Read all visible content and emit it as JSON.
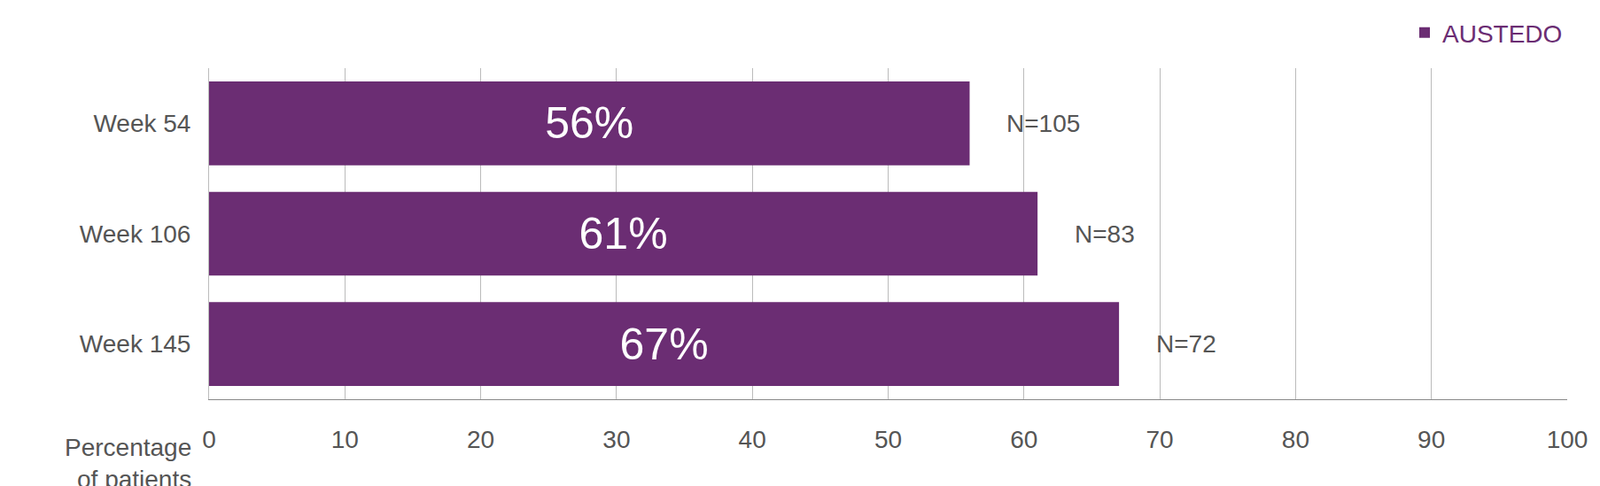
{
  "chart_data": {
    "type": "bar",
    "orientation": "horizontal",
    "categories": [
      "Week 54",
      "Week 106",
      "Week 145"
    ],
    "series": [
      {
        "name": "AUSTEDO",
        "color": "#6b2d73",
        "values": [
          56,
          61,
          67
        ],
        "value_labels": [
          "56%",
          "61%",
          "67%"
        ],
        "n_labels": [
          "N=105",
          "N=83",
          "N=72"
        ]
      }
    ],
    "x_label": "Percentage of patients",
    "xlim": [
      0,
      100
    ],
    "xticks": [
      0,
      10,
      20,
      30,
      40,
      50,
      60,
      70,
      80,
      90,
      100
    ],
    "grid": true,
    "legend": "top right",
    "data_labels": true
  }
}
